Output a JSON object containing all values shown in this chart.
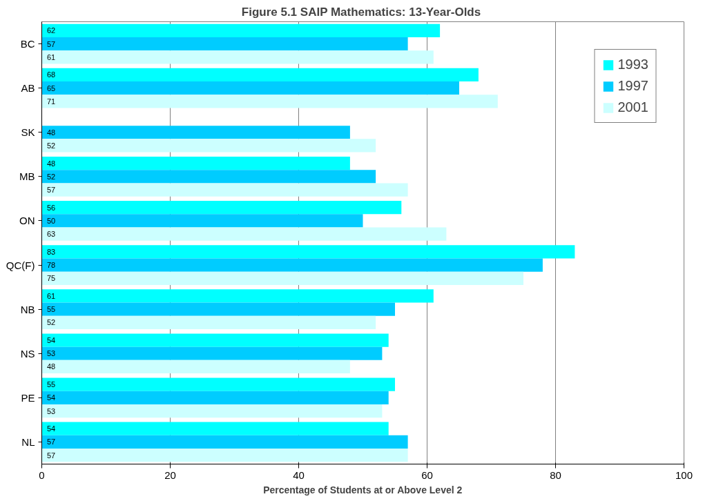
{
  "chart_data": {
    "type": "bar",
    "orientation": "horizontal",
    "title": "Figure 5.1  SAIP Mathematics: 13-Year-Olds",
    "xlabel": "Percentage of Students at or Above Level 2",
    "categories": [
      "BC",
      "AB",
      "SK",
      "MB",
      "ON",
      "QC(F)",
      "NB",
      "NS",
      "PE",
      "NL"
    ],
    "series": [
      {
        "name": "1993",
        "color": "#00ffff",
        "values": [
          62,
          68,
          null,
          48,
          56,
          83,
          61,
          54,
          55,
          54
        ]
      },
      {
        "name": "1997",
        "color": "#00ccff",
        "values": [
          57,
          65,
          48,
          52,
          50,
          78,
          55,
          53,
          54,
          57
        ]
      },
      {
        "name": "2001",
        "color": "#ccffff",
        "values": [
          61,
          71,
          52,
          57,
          63,
          75,
          52,
          48,
          53,
          57
        ]
      }
    ],
    "xlim": [
      0,
      100
    ],
    "xticks": [
      0,
      20,
      40,
      60,
      80,
      100
    ],
    "grid": "x",
    "legend": "top right",
    "data_labels": true
  }
}
